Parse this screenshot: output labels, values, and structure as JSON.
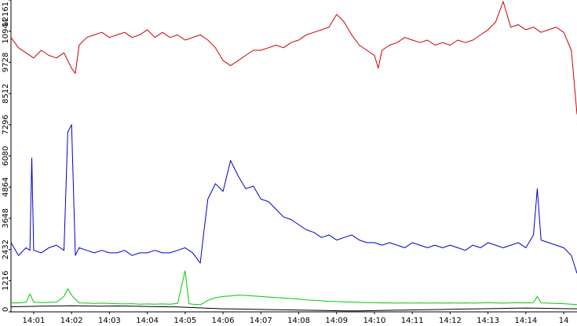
{
  "chart_data": {
    "type": "line",
    "x_unit": "time",
    "x_ticks": [
      "14:01",
      "14:02",
      "14:03",
      "14:04",
      "14:05",
      "14:06",
      "14:07",
      "14:08",
      "14:09",
      "14:10",
      "14:11",
      "14:12",
      "14:13",
      "14:14",
      "14"
    ],
    "y_ticks": [
      "0",
      "1216",
      "2432",
      "3648",
      "4864",
      "6080",
      "7296",
      "8512",
      "9728",
      "10944",
      "12161"
    ],
    "ylim": [
      0,
      12161
    ],
    "grid": false,
    "legend": "none",
    "x_start_minutes": 840.4,
    "x_end_minutes": 855.35,
    "series": [
      {
        "color": "#cc0000",
        "points": [
          [
            840.4,
            10700
          ],
          [
            840.6,
            10300
          ],
          [
            840.8,
            10100
          ],
          [
            841.0,
            9900
          ],
          [
            841.2,
            10200
          ],
          [
            841.4,
            10000
          ],
          [
            841.6,
            9900
          ],
          [
            841.8,
            10100
          ],
          [
            842.0,
            9500
          ],
          [
            842.1,
            9300
          ],
          [
            842.2,
            10400
          ],
          [
            842.4,
            10700
          ],
          [
            842.6,
            10800
          ],
          [
            842.8,
            10900
          ],
          [
            843.0,
            10700
          ],
          [
            843.2,
            10800
          ],
          [
            843.4,
            10900
          ],
          [
            843.6,
            10700
          ],
          [
            843.8,
            10800
          ],
          [
            844.0,
            11000
          ],
          [
            844.2,
            10700
          ],
          [
            844.4,
            10900
          ],
          [
            844.6,
            10700
          ],
          [
            844.8,
            10800
          ],
          [
            845.0,
            10600
          ],
          [
            845.2,
            10700
          ],
          [
            845.4,
            10800
          ],
          [
            845.6,
            10600
          ],
          [
            845.8,
            10300
          ],
          [
            846.0,
            9800
          ],
          [
            846.2,
            9600
          ],
          [
            846.4,
            9800
          ],
          [
            846.6,
            10000
          ],
          [
            846.8,
            10200
          ],
          [
            847.0,
            10200
          ],
          [
            847.2,
            10300
          ],
          [
            847.4,
            10400
          ],
          [
            847.6,
            10300
          ],
          [
            847.8,
            10500
          ],
          [
            848.0,
            10600
          ],
          [
            848.2,
            10800
          ],
          [
            848.4,
            10900
          ],
          [
            848.6,
            11000
          ],
          [
            848.8,
            11100
          ],
          [
            849.0,
            11600
          ],
          [
            849.2,
            11300
          ],
          [
            849.4,
            10800
          ],
          [
            849.6,
            10400
          ],
          [
            849.8,
            10200
          ],
          [
            850.0,
            10000
          ],
          [
            850.1,
            9500
          ],
          [
            850.2,
            10200
          ],
          [
            850.4,
            10400
          ],
          [
            850.6,
            10500
          ],
          [
            850.8,
            10700
          ],
          [
            851.0,
            10600
          ],
          [
            851.2,
            10500
          ],
          [
            851.4,
            10600
          ],
          [
            851.6,
            10400
          ],
          [
            851.8,
            10500
          ],
          [
            852.0,
            10400
          ],
          [
            852.2,
            10600
          ],
          [
            852.4,
            10500
          ],
          [
            852.6,
            10600
          ],
          [
            852.8,
            10800
          ],
          [
            853.0,
            11000
          ],
          [
            853.2,
            11300
          ],
          [
            853.4,
            12100
          ],
          [
            853.6,
            11100
          ],
          [
            853.8,
            11200
          ],
          [
            854.0,
            11000
          ],
          [
            854.2,
            11100
          ],
          [
            854.4,
            10900
          ],
          [
            854.6,
            11000
          ],
          [
            854.8,
            11100
          ],
          [
            855.0,
            10900
          ],
          [
            855.2,
            10200
          ],
          [
            855.35,
            7700
          ]
        ]
      },
      {
        "color": "#0000cc",
        "points": [
          [
            840.4,
            2700
          ],
          [
            840.6,
            2200
          ],
          [
            840.8,
            2500
          ],
          [
            840.9,
            2400
          ],
          [
            840.95,
            6000
          ],
          [
            841.0,
            2400
          ],
          [
            841.2,
            2300
          ],
          [
            841.4,
            2500
          ],
          [
            841.6,
            2600
          ],
          [
            841.8,
            2400
          ],
          [
            841.9,
            7000
          ],
          [
            842.0,
            7300
          ],
          [
            842.1,
            2200
          ],
          [
            842.2,
            2500
          ],
          [
            842.4,
            2400
          ],
          [
            842.6,
            2300
          ],
          [
            842.8,
            2400
          ],
          [
            843.0,
            2300
          ],
          [
            843.2,
            2300
          ],
          [
            843.4,
            2400
          ],
          [
            843.6,
            2200
          ],
          [
            843.8,
            2300
          ],
          [
            844.0,
            2300
          ],
          [
            844.2,
            2400
          ],
          [
            844.4,
            2300
          ],
          [
            844.6,
            2300
          ],
          [
            844.8,
            2400
          ],
          [
            845.0,
            2500
          ],
          [
            845.2,
            2300
          ],
          [
            845.4,
            1900
          ],
          [
            845.5,
            3200
          ],
          [
            845.6,
            4400
          ],
          [
            845.8,
            5000
          ],
          [
            846.0,
            4700
          ],
          [
            846.2,
            5900
          ],
          [
            846.4,
            5300
          ],
          [
            846.6,
            4800
          ],
          [
            846.8,
            4900
          ],
          [
            847.0,
            4400
          ],
          [
            847.2,
            4300
          ],
          [
            847.4,
            4000
          ],
          [
            847.6,
            3700
          ],
          [
            847.8,
            3600
          ],
          [
            848.0,
            3400
          ],
          [
            848.2,
            3200
          ],
          [
            848.4,
            3100
          ],
          [
            848.6,
            2900
          ],
          [
            848.8,
            3000
          ],
          [
            849.0,
            2800
          ],
          [
            849.2,
            2900
          ],
          [
            849.4,
            3000
          ],
          [
            849.6,
            2800
          ],
          [
            849.8,
            2700
          ],
          [
            850.0,
            2700
          ],
          [
            850.2,
            2600
          ],
          [
            850.4,
            2700
          ],
          [
            850.6,
            2600
          ],
          [
            850.8,
            2500
          ],
          [
            851.0,
            2700
          ],
          [
            851.2,
            2600
          ],
          [
            851.4,
            2500
          ],
          [
            851.6,
            2600
          ],
          [
            851.8,
            2500
          ],
          [
            852.0,
            2600
          ],
          [
            852.2,
            2500
          ],
          [
            852.4,
            2400
          ],
          [
            852.6,
            2600
          ],
          [
            852.8,
            2500
          ],
          [
            853.0,
            2700
          ],
          [
            853.2,
            2600
          ],
          [
            853.4,
            2500
          ],
          [
            853.6,
            2600
          ],
          [
            853.8,
            2700
          ],
          [
            854.0,
            2500
          ],
          [
            854.2,
            3000
          ],
          [
            854.3,
            4800
          ],
          [
            854.4,
            2800
          ],
          [
            854.6,
            2700
          ],
          [
            854.8,
            2600
          ],
          [
            855.0,
            2500
          ],
          [
            855.2,
            2200
          ],
          [
            855.35,
            1500
          ]
        ]
      },
      {
        "color": "#00cc00",
        "points": [
          [
            840.4,
            350
          ],
          [
            840.6,
            350
          ],
          [
            840.8,
            380
          ],
          [
            840.9,
            700
          ],
          [
            841.0,
            380
          ],
          [
            841.2,
            360
          ],
          [
            841.4,
            370
          ],
          [
            841.6,
            380
          ],
          [
            841.8,
            600
          ],
          [
            841.9,
            900
          ],
          [
            842.0,
            650
          ],
          [
            842.2,
            350
          ],
          [
            842.4,
            340
          ],
          [
            842.6,
            330
          ],
          [
            842.8,
            340
          ],
          [
            843.0,
            330
          ],
          [
            843.2,
            320
          ],
          [
            843.4,
            310
          ],
          [
            843.6,
            320
          ],
          [
            843.8,
            300
          ],
          [
            844.0,
            310
          ],
          [
            844.2,
            300
          ],
          [
            844.4,
            310
          ],
          [
            844.6,
            300
          ],
          [
            844.8,
            330
          ],
          [
            845.0,
            1600
          ],
          [
            845.1,
            320
          ],
          [
            845.2,
            300
          ],
          [
            845.4,
            280
          ],
          [
            845.6,
            450
          ],
          [
            845.8,
            550
          ],
          [
            846.0,
            600
          ],
          [
            846.2,
            620
          ],
          [
            846.4,
            650
          ],
          [
            846.6,
            640
          ],
          [
            846.8,
            620
          ],
          [
            847.0,
            600
          ],
          [
            847.2,
            580
          ],
          [
            847.4,
            560
          ],
          [
            847.6,
            540
          ],
          [
            847.8,
            520
          ],
          [
            848.0,
            500
          ],
          [
            848.2,
            470
          ],
          [
            848.4,
            450
          ],
          [
            848.6,
            430
          ],
          [
            848.8,
            410
          ],
          [
            849.0,
            400
          ],
          [
            849.2,
            390
          ],
          [
            849.4,
            380
          ],
          [
            849.6,
            370
          ],
          [
            849.8,
            360
          ],
          [
            850.0,
            360
          ],
          [
            850.2,
            350
          ],
          [
            850.4,
            350
          ],
          [
            850.6,
            340
          ],
          [
            850.8,
            350
          ],
          [
            851.0,
            340
          ],
          [
            851.2,
            350
          ],
          [
            851.4,
            340
          ],
          [
            851.6,
            350
          ],
          [
            851.8,
            340
          ],
          [
            852.0,
            350
          ],
          [
            852.2,
            340
          ],
          [
            852.4,
            350
          ],
          [
            852.6,
            340
          ],
          [
            852.8,
            350
          ],
          [
            853.0,
            360
          ],
          [
            853.2,
            350
          ],
          [
            853.4,
            340
          ],
          [
            853.6,
            350
          ],
          [
            853.8,
            360
          ],
          [
            854.0,
            350
          ],
          [
            854.2,
            360
          ],
          [
            854.3,
            600
          ],
          [
            854.4,
            350
          ],
          [
            854.6,
            340
          ],
          [
            854.8,
            330
          ],
          [
            855.0,
            320
          ],
          [
            855.2,
            300
          ],
          [
            855.35,
            280
          ]
        ]
      },
      {
        "color": "#000000",
        "points": [
          [
            840.4,
            200
          ],
          [
            840.8,
            210
          ],
          [
            841.2,
            220
          ],
          [
            841.6,
            230
          ],
          [
            842.0,
            240
          ],
          [
            842.4,
            230
          ],
          [
            842.8,
            220
          ],
          [
            843.2,
            230
          ],
          [
            843.6,
            220
          ],
          [
            844.0,
            210
          ],
          [
            844.4,
            200
          ],
          [
            844.8,
            190
          ],
          [
            845.2,
            170
          ],
          [
            845.6,
            140
          ],
          [
            846.0,
            120
          ],
          [
            846.4,
            110
          ],
          [
            846.8,
            100
          ],
          [
            847.2,
            90
          ],
          [
            847.6,
            80
          ],
          [
            848.0,
            70
          ],
          [
            848.4,
            60
          ],
          [
            848.8,
            50
          ],
          [
            849.2,
            40
          ],
          [
            849.6,
            40
          ],
          [
            850.0,
            50
          ],
          [
            850.4,
            60
          ],
          [
            850.8,
            70
          ],
          [
            851.2,
            80
          ],
          [
            851.6,
            90
          ],
          [
            852.0,
            100
          ],
          [
            852.4,
            110
          ],
          [
            852.8,
            120
          ],
          [
            853.2,
            130
          ],
          [
            853.6,
            140
          ],
          [
            854.0,
            150
          ],
          [
            854.4,
            140
          ],
          [
            854.8,
            130
          ],
          [
            855.35,
            120
          ]
        ]
      }
    ]
  }
}
